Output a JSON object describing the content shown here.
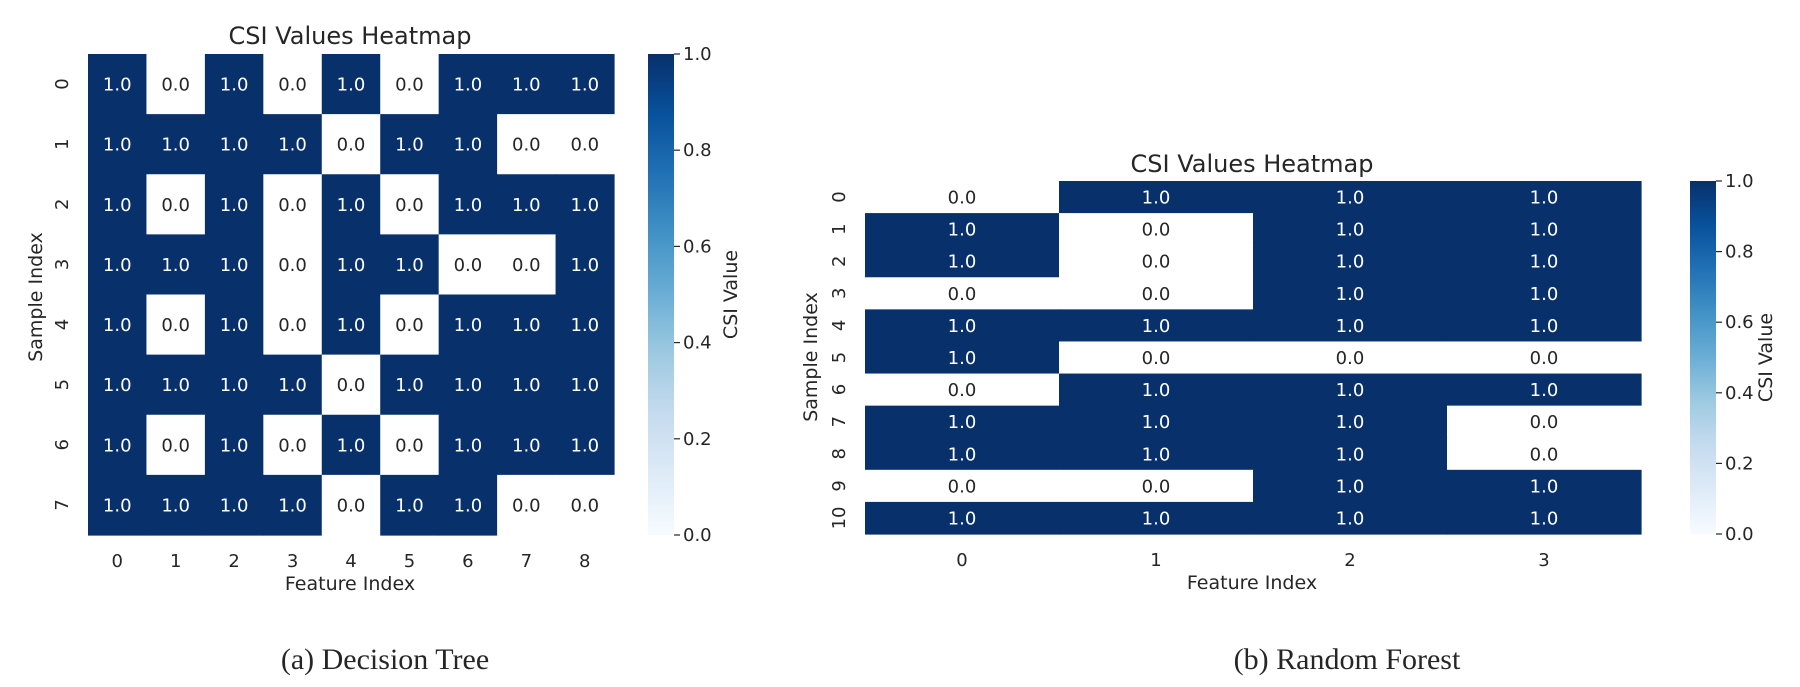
{
  "colors": {
    "high": "#08306b",
    "low": "#ffffff",
    "colorbar_stops": [
      "#f7fbff",
      "#deebf7",
      "#c6dbef",
      "#9ecae1",
      "#6baed6",
      "#4292c6",
      "#2171b5",
      "#08519c",
      "#08306b"
    ],
    "text_on_dark": "#ffffff",
    "text_on_light": "#262626"
  },
  "chart_data": [
    {
      "type": "heatmap",
      "title": "CSI Values Heatmap",
      "xlabel": "Feature Index",
      "ylabel": "Sample Index",
      "caption": "(a) Decision Tree",
      "x_ticks": [
        "0",
        "1",
        "2",
        "3",
        "4",
        "5",
        "6",
        "7",
        "8"
      ],
      "y_ticks": [
        "0",
        "1",
        "2",
        "3",
        "4",
        "5",
        "6",
        "7"
      ],
      "values": [
        [
          1.0,
          0.0,
          1.0,
          0.0,
          1.0,
          0.0,
          1.0,
          1.0,
          1.0
        ],
        [
          1.0,
          1.0,
          1.0,
          1.0,
          0.0,
          1.0,
          1.0,
          0.0,
          0.0
        ],
        [
          1.0,
          0.0,
          1.0,
          0.0,
          1.0,
          0.0,
          1.0,
          1.0,
          1.0
        ],
        [
          1.0,
          1.0,
          1.0,
          0.0,
          1.0,
          1.0,
          0.0,
          0.0,
          1.0
        ],
        [
          1.0,
          0.0,
          1.0,
          0.0,
          1.0,
          0.0,
          1.0,
          1.0,
          1.0
        ],
        [
          1.0,
          1.0,
          1.0,
          1.0,
          0.0,
          1.0,
          1.0,
          1.0,
          1.0
        ],
        [
          1.0,
          0.0,
          1.0,
          0.0,
          1.0,
          0.0,
          1.0,
          1.0,
          1.0
        ],
        [
          1.0,
          1.0,
          1.0,
          1.0,
          0.0,
          1.0,
          1.0,
          0.0,
          0.0
        ]
      ],
      "colorbar": {
        "label": "CSI Value",
        "range": [
          0.0,
          1.0
        ],
        "ticks": [
          "0.0",
          "0.2",
          "0.4",
          "0.6",
          "0.8",
          "1.0"
        ]
      }
    },
    {
      "type": "heatmap",
      "title": "CSI Values Heatmap",
      "xlabel": "Feature Index",
      "ylabel": "Sample Index",
      "caption": "(b) Random Forest",
      "x_ticks": [
        "0",
        "1",
        "2",
        "3"
      ],
      "y_ticks": [
        "0",
        "1",
        "2",
        "3",
        "4",
        "5",
        "6",
        "7",
        "8",
        "9",
        "10"
      ],
      "values": [
        [
          0.0,
          1.0,
          1.0,
          1.0
        ],
        [
          1.0,
          0.0,
          1.0,
          1.0
        ],
        [
          1.0,
          0.0,
          1.0,
          1.0
        ],
        [
          0.0,
          0.0,
          1.0,
          1.0
        ],
        [
          1.0,
          1.0,
          1.0,
          1.0
        ],
        [
          1.0,
          0.0,
          0.0,
          0.0
        ],
        [
          0.0,
          1.0,
          1.0,
          1.0
        ],
        [
          1.0,
          1.0,
          1.0,
          0.0
        ],
        [
          1.0,
          1.0,
          1.0,
          0.0
        ],
        [
          0.0,
          0.0,
          1.0,
          1.0
        ],
        [
          1.0,
          1.0,
          1.0,
          1.0
        ]
      ],
      "colorbar": {
        "label": "CSI Value",
        "range": [
          0.0,
          1.0
        ],
        "ticks": [
          "0.0",
          "0.2",
          "0.4",
          "0.6",
          "0.8",
          "1.0"
        ]
      }
    }
  ]
}
